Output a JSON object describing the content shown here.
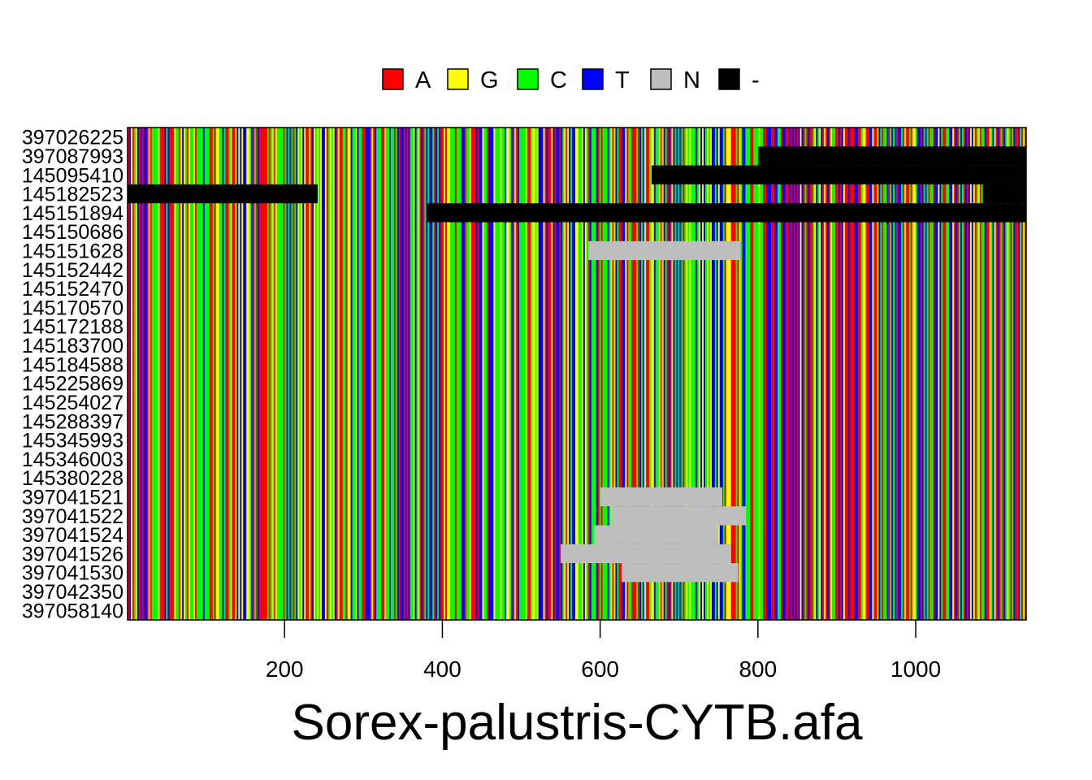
{
  "chart_data": {
    "type": "heatmap",
    "title": "Sorex-palustris-CYTB.afa",
    "xlabel": "",
    "ylabel": "",
    "xlim": [
      1,
      1140
    ],
    "xticks": [
      200,
      400,
      600,
      800,
      1000
    ],
    "legend_position": "top",
    "legend": [
      {
        "symbol": "A",
        "color": "#ff0000"
      },
      {
        "symbol": "G",
        "color": "#ffff00"
      },
      {
        "symbol": "C",
        "color": "#00ff00"
      },
      {
        "symbol": "T",
        "color": "#0000ff"
      },
      {
        "symbol": "N",
        "color": "#bebebe"
      },
      {
        "symbol": "-",
        "color": "#000000"
      }
    ],
    "rows": [
      {
        "label": "397026225",
        "gaps": [],
        "n_blocks": []
      },
      {
        "label": "397087993",
        "gaps": [
          [
            800,
            1140
          ]
        ],
        "n_blocks": []
      },
      {
        "label": "145095410",
        "gaps": [
          [
            665,
            1140
          ]
        ],
        "n_blocks": []
      },
      {
        "label": "145182523",
        "gaps": [
          [
            1,
            242
          ],
          [
            1085,
            1140
          ]
        ],
        "n_blocks": []
      },
      {
        "label": "145151894",
        "gaps": [
          [
            380,
            1140
          ]
        ],
        "n_blocks": []
      },
      {
        "label": "145150686",
        "gaps": [],
        "n_blocks": []
      },
      {
        "label": "145151628",
        "gaps": [],
        "n_blocks": [
          [
            585,
            778
          ]
        ]
      },
      {
        "label": "145152442",
        "gaps": [],
        "n_blocks": []
      },
      {
        "label": "145152470",
        "gaps": [],
        "n_blocks": []
      },
      {
        "label": "145170570",
        "gaps": [],
        "n_blocks": []
      },
      {
        "label": "145172188",
        "gaps": [],
        "n_blocks": []
      },
      {
        "label": "145183700",
        "gaps": [],
        "n_blocks": []
      },
      {
        "label": "145184588",
        "gaps": [],
        "n_blocks": []
      },
      {
        "label": "145225869",
        "gaps": [],
        "n_blocks": []
      },
      {
        "label": "145254027",
        "gaps": [],
        "n_blocks": []
      },
      {
        "label": "145288397",
        "gaps": [],
        "n_blocks": []
      },
      {
        "label": "145345993",
        "gaps": [],
        "n_blocks": []
      },
      {
        "label": "145346003",
        "gaps": [],
        "n_blocks": []
      },
      {
        "label": "145380228",
        "gaps": [],
        "n_blocks": []
      },
      {
        "label": "397041521",
        "gaps": [],
        "n_blocks": [
          [
            600,
            755
          ]
        ]
      },
      {
        "label": "397041522",
        "gaps": [],
        "n_blocks": [
          [
            614,
            785
          ]
        ]
      },
      {
        "label": "397041524",
        "gaps": [],
        "n_blocks": [
          [
            592,
            750
          ]
        ]
      },
      {
        "label": "397041526",
        "gaps": [],
        "n_blocks": [
          [
            550,
            765
          ]
        ]
      },
      {
        "label": "397041530",
        "gaps": [],
        "n_blocks": [
          [
            627,
            775
          ]
        ]
      },
      {
        "label": "397042350",
        "gaps": [],
        "n_blocks": []
      },
      {
        "label": "397058140",
        "gaps": [],
        "n_blocks": []
      }
    ]
  }
}
